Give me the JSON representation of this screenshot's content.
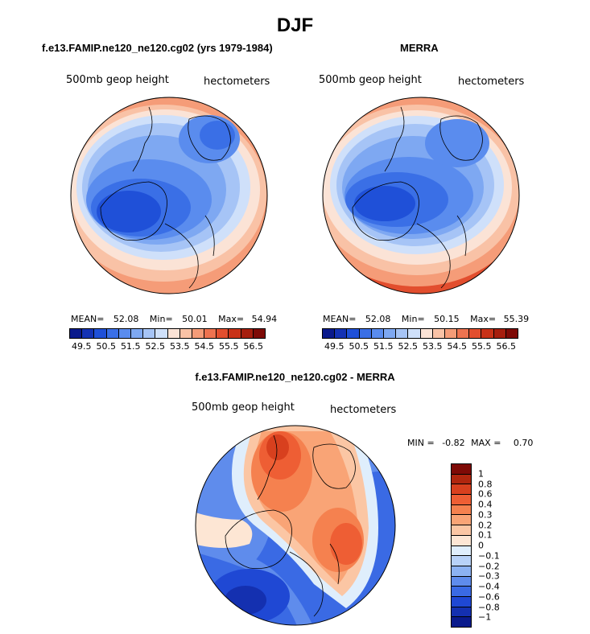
{
  "figure": {
    "title": "DJF"
  },
  "panels": [
    {
      "title": "f.e13.FAMIP.ne120_ne120.cg02 (yrs 1979-1984)",
      "variable": "500mb geop height",
      "units": "hectometers",
      "stats": {
        "mean_label": "MEAN=",
        "mean": "52.08",
        "min_label": "Min=",
        "min": "50.01",
        "max_label": "Max=",
        "max": "54.94"
      }
    },
    {
      "title": "MERRA",
      "variable": "500mb geop height",
      "units": "hectometers",
      "stats": {
        "mean_label": "MEAN=",
        "mean": "52.08",
        "min_label": "Min=",
        "min": "50.15",
        "max_label": "Max=",
        "max": "55.39"
      }
    },
    {
      "title": "f.e13.FAMIP.ne120_ne120.cg02 - MERRA",
      "variable": "500mb geop height",
      "units": "hectometers",
      "stats": {
        "min_label": "MIN =",
        "min": "-0.82",
        "max_label": "MAX =",
        "max": "0.70"
      }
    }
  ],
  "colorbar_abs": {
    "colors": [
      "#0a1a8c",
      "#1432b4",
      "#1f50d8",
      "#3a6fe6",
      "#5a8cee",
      "#7ea8f2",
      "#a6c4f6",
      "#cfe0fa",
      "#fbe3d6",
      "#f9c2a6",
      "#f59c78",
      "#ee7350",
      "#e24e2e",
      "#c83218",
      "#a61e0e",
      "#7e0a06"
    ],
    "ticks": [
      "49.5",
      "50.5",
      "51.5",
      "52.5",
      "53.5",
      "54.5",
      "55.5",
      "56.5"
    ]
  },
  "colorbar_diff": {
    "colors": [
      "#7e0a06",
      "#b0260e",
      "#d8401e",
      "#ee5e34",
      "#f5814f",
      "#f9a476",
      "#fbc6a4",
      "#fde6d4",
      "#dfeefc",
      "#b8d2f8",
      "#8cb2f2",
      "#5f8cec",
      "#3a6ae4",
      "#1f48d4",
      "#1430b0",
      "#0a1a8c"
    ],
    "ticks": [
      "1",
      "0.8",
      "0.6",
      "0.4",
      "0.3",
      "0.2",
      "0.1",
      "0",
      "−0.1",
      "−0.2",
      "−0.3",
      "−0.4",
      "−0.6",
      "−0.8",
      "−1"
    ]
  }
}
